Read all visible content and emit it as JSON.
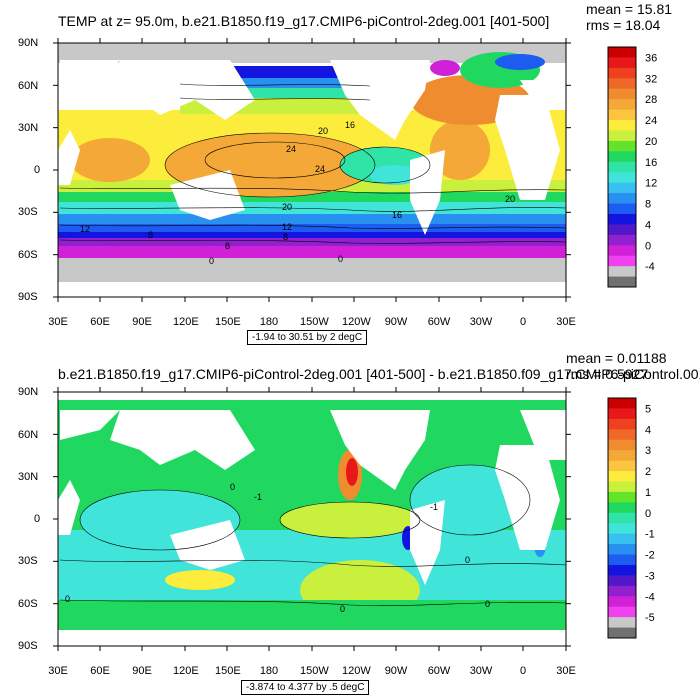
{
  "panels": [
    {
      "title": "TEMP at z=  95.0m, b.e21.B1850.f19_g17.CMIP6-piControl-2deg.001 [401-500]",
      "mean": "mean = 15.81",
      "rms": "rms = 18.04",
      "range_label": "-1.94 to 30.51 by 2 degC",
      "colorbar_labels": [
        "36",
        "32",
        "28",
        "24",
        "20",
        "16",
        "12",
        "8",
        "4",
        "0",
        "-4"
      ],
      "colorbar_colors": [
        "#c80000",
        "#e81818",
        "#f04020",
        "#f06828",
        "#f08c30",
        "#f4a838",
        "#fcc440",
        "#fcec3c",
        "#c8f03c",
        "#64e428",
        "#20d860",
        "#30e4a8",
        "#40e4d8",
        "#38c0f0",
        "#2890f0",
        "#1c5cf0",
        "#1414e0",
        "#5018c8",
        "#9020d0",
        "#d020d8",
        "#f040f0",
        "#c8c8c8",
        "#707070"
      ],
      "contour_labels": [
        "20",
        "16",
        "24",
        "24",
        "20",
        "16",
        "20",
        "12",
        "8",
        "8",
        "12",
        "8",
        "0",
        "0"
      ]
    },
    {
      "title": "b.e21.B1850.f19_g17.CMIP6-piControl-2deg.001 [401-500] - b.e21.B1850.f09_g17.CMIP6-piControl.001",
      "mean": "mean = 0.01188",
      "rms": "rms = 0.5927",
      "range_label": "-3.874 to 4.377 by .5 degC",
      "colorbar_labels": [
        "5",
        "4",
        "3",
        "2",
        "1",
        "0",
        "-1",
        "-2",
        "-3",
        "-4",
        "-5"
      ],
      "colorbar_colors": [
        "#c80000",
        "#e81818",
        "#f04020",
        "#f06828",
        "#f08c30",
        "#f4a838",
        "#fcc440",
        "#fcec3c",
        "#c8f03c",
        "#64e428",
        "#20d860",
        "#30e4a8",
        "#40e4d8",
        "#38c0f0",
        "#2890f0",
        "#1c5cf0",
        "#1414e0",
        "#5018c8",
        "#9020d0",
        "#d020d8",
        "#f040f0",
        "#c8c8c8",
        "#707070"
      ],
      "contour_labels": [
        "0",
        "-1",
        "0",
        "0",
        "0",
        "0",
        "-1"
      ]
    }
  ],
  "lat_labels": [
    "90N",
    "60N",
    "30N",
    "0",
    "30S",
    "60S",
    "90S"
  ],
  "lon_labels": [
    "30E",
    "60E",
    "90E",
    "120E",
    "150E",
    "180",
    "150W",
    "120W",
    "90W",
    "60W",
    "30W",
    "0",
    "30E"
  ]
}
